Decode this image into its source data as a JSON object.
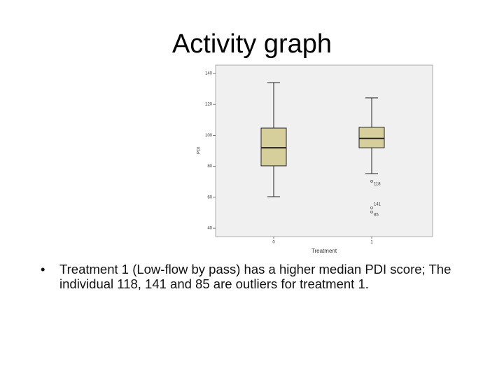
{
  "slide": {
    "title": "Activity graph",
    "bullet": "Treatment 1 (Low-flow by pass) has a higher median PDI score; The individual 118, 141 and 85 are outliers for treatment 1."
  },
  "chart_data": {
    "type": "box",
    "x_label": "Treatment",
    "y_label": "PDI",
    "categories": [
      "0",
      "1"
    ],
    "color": "#d6cf9c",
    "ylim": [
      34.6,
      145.4
    ],
    "yticks": [
      40,
      60,
      80,
      100,
      120,
      140
    ],
    "boxes": [
      {
        "whisker_low": 60.4,
        "q1": 80.3,
        "median": 92.0,
        "q3": 104.7,
        "whisker_high": 134.1,
        "outliers": []
      },
      {
        "whisker_low": 75.3,
        "q1": 92.0,
        "median": 98.0,
        "q3": 105.2,
        "whisker_high": 124.2,
        "outliers": [
          {
            "value": 70.4,
            "label": "118"
          },
          {
            "value": 53.2,
            "label": "141"
          },
          {
            "value": 50.5,
            "label": "85"
          }
        ]
      }
    ]
  }
}
